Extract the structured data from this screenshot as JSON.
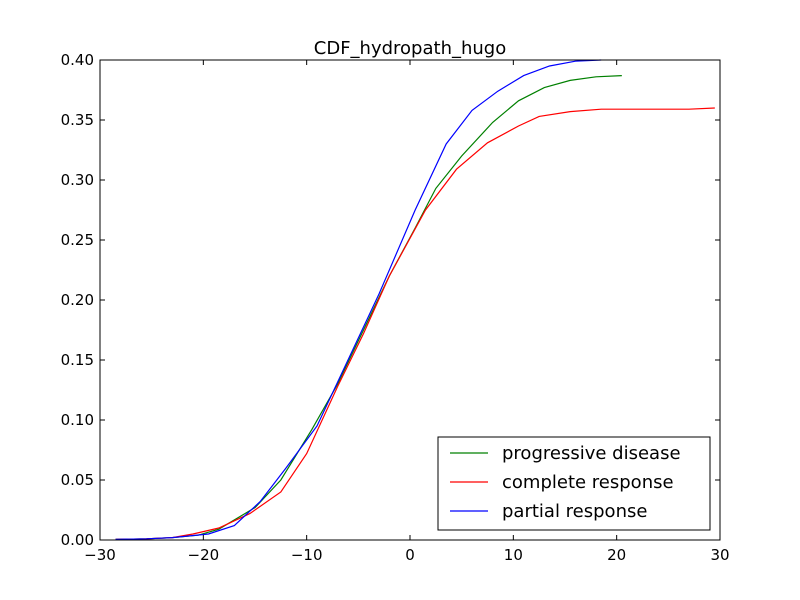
{
  "chart_data": {
    "type": "line",
    "title": "CDF_hydropath_hugo",
    "xlabel": "",
    "ylabel": "",
    "xlim": [
      -30,
      30
    ],
    "ylim": [
      0.0,
      0.4
    ],
    "x_ticks": [
      -30,
      -20,
      -10,
      0,
      10,
      20,
      30
    ],
    "x_tick_labels": [
      "−30",
      "−20",
      "−10",
      "0",
      "10",
      "20",
      "30"
    ],
    "y_ticks": [
      0.0,
      0.05,
      0.1,
      0.15,
      0.2,
      0.25,
      0.3,
      0.35,
      0.4
    ],
    "y_tick_labels": [
      "0.00",
      "0.05",
      "0.10",
      "0.15",
      "0.20",
      "0.25",
      "0.30",
      "0.35",
      "0.40"
    ],
    "grid": false,
    "legend_position": "bottom-right",
    "series": [
      {
        "name": "progressive disease",
        "color": "#008000",
        "x": [
          -28.5,
          -25.5,
          -23,
          -20.5,
          -18.5,
          -15,
          -12.5,
          -9.5,
          -7,
          -4.5,
          -2,
          0.5,
          2.5,
          5,
          8,
          10.5,
          13,
          15.5,
          18,
          20.5
        ],
        "y": [
          0.0005,
          0.001,
          0.002,
          0.004,
          0.009,
          0.027,
          0.05,
          0.092,
          0.13,
          0.175,
          0.22,
          0.26,
          0.293,
          0.32,
          0.348,
          0.366,
          0.377,
          0.383,
          0.386,
          0.387
        ]
      },
      {
        "name": "complete response",
        "color": "#ff0000",
        "x": [
          -28.5,
          -25.5,
          -23,
          -21,
          -18.5,
          -15.5,
          -12.5,
          -10,
          -7,
          -4.5,
          -2,
          1.5,
          4.5,
          7.5,
          10.5,
          12.5,
          15.5,
          18.5,
          21.5,
          24.5,
          27,
          29.5
        ],
        "y": [
          0.0005,
          0.001,
          0.002,
          0.005,
          0.01,
          0.022,
          0.04,
          0.072,
          0.128,
          0.172,
          0.22,
          0.275,
          0.309,
          0.331,
          0.345,
          0.353,
          0.357,
          0.359,
          0.359,
          0.359,
          0.359,
          0.36
        ]
      },
      {
        "name": "partial response",
        "color": "#0000ff",
        "x": [
          -28.5,
          -25.5,
          -23,
          -19.5,
          -17,
          -14.5,
          -12,
          -9,
          -6,
          -3,
          0.5,
          3.5,
          6,
          8.5,
          11,
          13.5,
          16,
          18.5
        ],
        "y": [
          0.0005,
          0.001,
          0.002,
          0.005,
          0.012,
          0.032,
          0.06,
          0.095,
          0.15,
          0.205,
          0.275,
          0.33,
          0.358,
          0.374,
          0.387,
          0.395,
          0.399,
          0.4
        ]
      }
    ]
  }
}
